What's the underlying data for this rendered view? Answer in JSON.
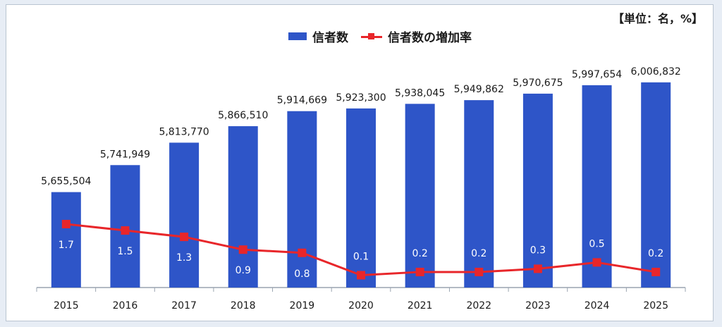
{
  "unit_label": "【単位：名，%】",
  "colors": {
    "bar": "#2e55c8",
    "line": "#e8262a",
    "axis": "#9aa4b0",
    "text": "#1a1a1a"
  },
  "chart_data": {
    "type": "bar",
    "title": "",
    "xlabel": "",
    "ylabel": "",
    "categories": [
      "2015",
      "2016",
      "2017",
      "2018",
      "2019",
      "2020",
      "2021",
      "2022",
      "2023",
      "2024",
      "2025"
    ],
    "series": [
      {
        "name": "信者数",
        "type": "bar",
        "values": [
          5655504,
          5741949,
          5813770,
          5866510,
          5914669,
          5923300,
          5938045,
          5949862,
          5970675,
          5997654,
          6006832
        ],
        "labels": [
          "5,655,504",
          "5,741,949",
          "5,813,770",
          "5,866,510",
          "5,914,669",
          "5,923,300",
          "5,938,045",
          "5,949,862",
          "5,970,675",
          "5,997,654",
          "6,006,832"
        ]
      },
      {
        "name": "信者数の増加率",
        "type": "line",
        "values": [
          1.7,
          1.5,
          1.3,
          0.9,
          0.8,
          0.1,
          0.2,
          0.2,
          0.3,
          0.5,
          0.2
        ],
        "labels": [
          "1.7",
          "1.5",
          "1.3",
          "0.9",
          "0.8",
          "0.1",
          "0.2",
          "0.2",
          "0.3",
          "0.5",
          "0.2"
        ]
      }
    ],
    "legend_position": "top-center",
    "grid": false
  }
}
